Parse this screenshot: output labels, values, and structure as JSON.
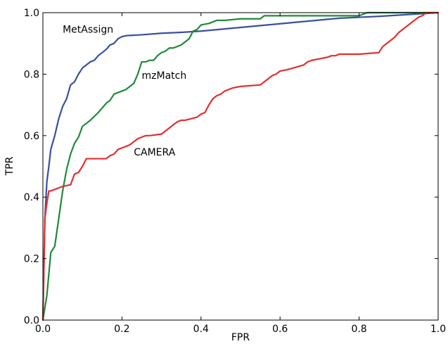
{
  "chart_data": {
    "type": "line",
    "title": "",
    "xlabel": "FPR",
    "ylabel": "TPR",
    "xlim": [
      0.0,
      1.0
    ],
    "ylim": [
      0.0,
      1.0
    ],
    "xticks": [
      "0.0",
      "0.2",
      "0.4",
      "0.6",
      "0.8",
      "1.0"
    ],
    "yticks": [
      "0.0",
      "0.2",
      "0.4",
      "0.6",
      "0.8",
      "1.0"
    ],
    "grid": false,
    "legend": "none",
    "series": [
      {
        "name": "MetAssign",
        "color": "#3a4fa0",
        "label_at": [
          0.05,
          0.935
        ],
        "x": [
          0.0,
          0.005,
          0.01,
          0.015,
          0.02,
          0.03,
          0.04,
          0.05,
          0.06,
          0.07,
          0.08,
          0.09,
          0.1,
          0.11,
          0.12,
          0.13,
          0.14,
          0.15,
          0.16,
          0.17,
          0.18,
          0.19,
          0.2,
          0.21,
          0.22,
          0.25,
          0.3,
          0.35,
          0.4,
          0.45,
          0.5,
          0.55,
          0.6,
          0.65,
          0.7,
          0.75,
          0.8,
          0.85,
          0.9,
          0.95,
          1.0
        ],
        "y": [
          0.0,
          0.33,
          0.45,
          0.5,
          0.555,
          0.6,
          0.655,
          0.695,
          0.72,
          0.765,
          0.775,
          0.8,
          0.82,
          0.83,
          0.84,
          0.845,
          0.86,
          0.87,
          0.88,
          0.895,
          0.9,
          0.915,
          0.922,
          0.925,
          0.926,
          0.928,
          0.933,
          0.936,
          0.94,
          0.946,
          0.952,
          0.958,
          0.964,
          0.97,
          0.976,
          0.982,
          0.985,
          0.988,
          0.992,
          0.996,
          1.0
        ]
      },
      {
        "name": "mzMatch",
        "color": "#1f8a3a",
        "label_at": [
          0.25,
          0.785
        ],
        "x": [
          0.0,
          0.01,
          0.02,
          0.03,
          0.04,
          0.05,
          0.06,
          0.07,
          0.08,
          0.09,
          0.1,
          0.12,
          0.14,
          0.15,
          0.16,
          0.17,
          0.18,
          0.19,
          0.2,
          0.21,
          0.22,
          0.23,
          0.24,
          0.25,
          0.26,
          0.27,
          0.28,
          0.29,
          0.3,
          0.31,
          0.32,
          0.33,
          0.34,
          0.35,
          0.36,
          0.37,
          0.38,
          0.39,
          0.4,
          0.42,
          0.44,
          0.46,
          0.5,
          0.55,
          0.56,
          0.6,
          0.7,
          0.8,
          0.82,
          0.85,
          0.9,
          1.0
        ],
        "y": [
          0.0,
          0.08,
          0.22,
          0.24,
          0.33,
          0.42,
          0.49,
          0.54,
          0.575,
          0.595,
          0.63,
          0.65,
          0.675,
          0.69,
          0.705,
          0.715,
          0.735,
          0.74,
          0.745,
          0.75,
          0.76,
          0.77,
          0.8,
          0.84,
          0.84,
          0.845,
          0.845,
          0.86,
          0.87,
          0.875,
          0.885,
          0.885,
          0.89,
          0.895,
          0.905,
          0.915,
          0.94,
          0.945,
          0.96,
          0.965,
          0.975,
          0.975,
          0.98,
          0.98,
          0.99,
          0.99,
          0.99,
          0.99,
          1.0,
          1.0,
          1.0,
          1.0
        ]
      },
      {
        "name": "CAMERA",
        "color": "#e03030",
        "label_at": [
          0.23,
          0.535
        ],
        "x": [
          0.0,
          0.005,
          0.01,
          0.015,
          0.02,
          0.04,
          0.05,
          0.07,
          0.08,
          0.09,
          0.1,
          0.11,
          0.16,
          0.17,
          0.18,
          0.19,
          0.2,
          0.21,
          0.22,
          0.23,
          0.24,
          0.25,
          0.26,
          0.27,
          0.3,
          0.31,
          0.32,
          0.33,
          0.34,
          0.35,
          0.36,
          0.39,
          0.4,
          0.41,
          0.42,
          0.43,
          0.44,
          0.45,
          0.46,
          0.47,
          0.48,
          0.5,
          0.55,
          0.56,
          0.57,
          0.58,
          0.59,
          0.6,
          0.62,
          0.66,
          0.67,
          0.68,
          0.7,
          0.72,
          0.73,
          0.74,
          0.75,
          0.8,
          0.85,
          0.86,
          0.87,
          0.88,
          0.89,
          0.9,
          0.91,
          0.92,
          0.93,
          0.94,
          0.95,
          0.96,
          0.97,
          1.0
        ],
        "y": [
          0.0,
          0.33,
          0.38,
          0.42,
          0.42,
          0.43,
          0.435,
          0.44,
          0.475,
          0.48,
          0.5,
          0.525,
          0.525,
          0.535,
          0.54,
          0.555,
          0.56,
          0.565,
          0.57,
          0.58,
          0.59,
          0.595,
          0.6,
          0.6,
          0.605,
          0.615,
          0.625,
          0.635,
          0.645,
          0.65,
          0.65,
          0.66,
          0.67,
          0.675,
          0.7,
          0.72,
          0.73,
          0.735,
          0.745,
          0.75,
          0.755,
          0.76,
          0.765,
          0.775,
          0.785,
          0.795,
          0.8,
          0.81,
          0.815,
          0.83,
          0.84,
          0.845,
          0.85,
          0.855,
          0.86,
          0.86,
          0.865,
          0.865,
          0.87,
          0.89,
          0.9,
          0.91,
          0.92,
          0.935,
          0.945,
          0.955,
          0.965,
          0.975,
          0.985,
          0.99,
          1.0,
          1.0
        ]
      }
    ]
  }
}
